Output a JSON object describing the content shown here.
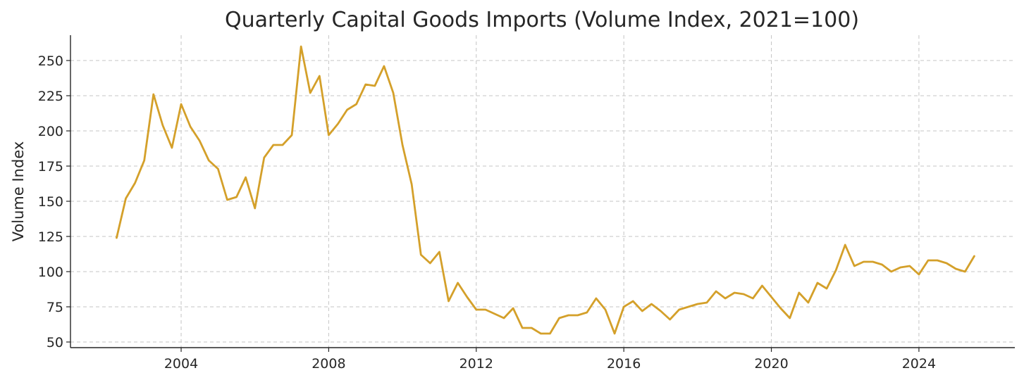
{
  "chart_data": {
    "type": "line",
    "title": "Quarterly Capital Goods Imports (Volume Index, 2021=100)",
    "xlabel": "",
    "ylabel": "Volume Index",
    "xlim": [
      2001.0,
      2026.6
    ],
    "ylim": [
      46,
      268
    ],
    "x_ticks": [
      2004,
      2008,
      2012,
      2016,
      2020,
      2024
    ],
    "x_tick_labels": [
      "2004",
      "2008",
      "2012",
      "2016",
      "2020",
      "2024"
    ],
    "y_ticks": [
      50,
      75,
      100,
      125,
      150,
      175,
      200,
      225,
      250
    ],
    "y_tick_labels": [
      "50",
      "75",
      "100",
      "125",
      "150",
      "175",
      "200",
      "225",
      "250"
    ],
    "grid": true,
    "colors": {
      "line": "#D4A02A"
    },
    "series": [
      {
        "x_start": "2002 Q2",
        "x_step": "quarter",
        "values": [
          124,
          152,
          163,
          179,
          226,
          204,
          188,
          219,
          203,
          193,
          179,
          173,
          151,
          153,
          167,
          145,
          181,
          190,
          190,
          197,
          260,
          227,
          239,
          197,
          205,
          215,
          219,
          233,
          232,
          246,
          227,
          190,
          162,
          112,
          106,
          114,
          79,
          92,
          82,
          73,
          73,
          70,
          67,
          74,
          60,
          60,
          56,
          56,
          67,
          69,
          69,
          71,
          81,
          73,
          56,
          75,
          79,
          72,
          77,
          72,
          66,
          73,
          75,
          77,
          78,
          86,
          81,
          85,
          84,
          81,
          90,
          82,
          74,
          67,
          85,
          78,
          92,
          88,
          101,
          119,
          104,
          107,
          107,
          105,
          100,
          103,
          104,
          98,
          108,
          108,
          106,
          102,
          100,
          111
        ]
      }
    ]
  }
}
